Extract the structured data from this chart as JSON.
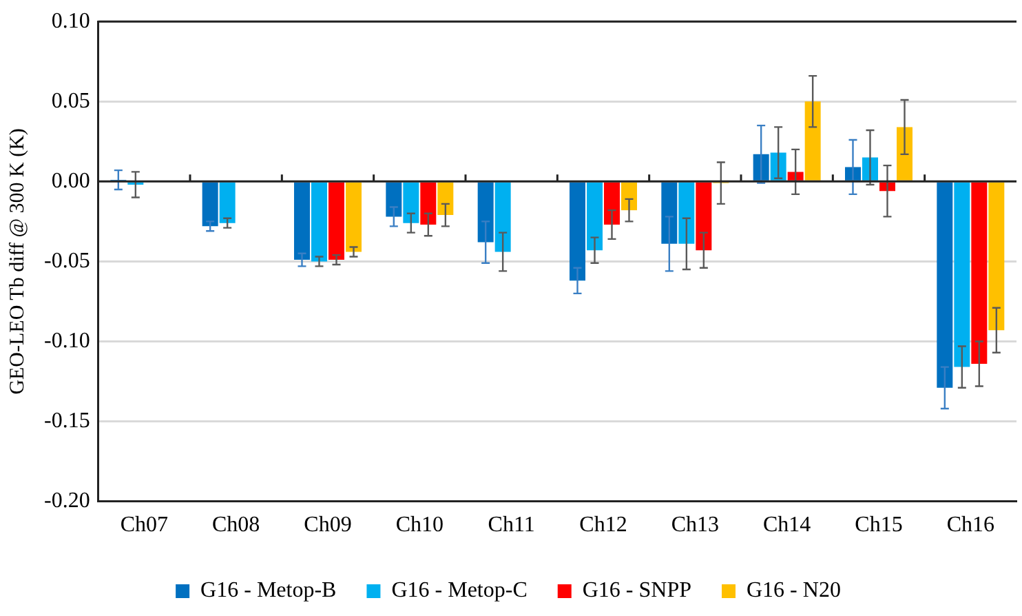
{
  "chart_data": {
    "type": "bar",
    "ylabel": "GEO-LEO Tb diff @ 300 K (K)",
    "categories": [
      "Ch07",
      "Ch08",
      "Ch09",
      "Ch10",
      "Ch11",
      "Ch12",
      "Ch13",
      "Ch14",
      "Ch15",
      "Ch16"
    ],
    "series": [
      {
        "name": "G16 - Metop-B",
        "color": "#0070c0",
        "values": [
          0.001,
          -0.028,
          -0.049,
          -0.022,
          -0.038,
          -0.062,
          -0.039,
          0.017,
          0.009,
          -0.129
        ],
        "errors": [
          0.006,
          0.003,
          0.004,
          0.006,
          0.013,
          0.008,
          0.017,
          0.018,
          0.017,
          0.013
        ]
      },
      {
        "name": "G16 - Metop-C",
        "color": "#00b0f0",
        "values": [
          -0.002,
          -0.026,
          -0.05,
          -0.026,
          -0.044,
          -0.043,
          -0.039,
          0.018,
          0.015,
          -0.116
        ],
        "errors": [
          0.008,
          0.003,
          0.003,
          0.006,
          0.012,
          0.008,
          0.016,
          0.016,
          0.017,
          0.013
        ]
      },
      {
        "name": "G16 - SNPP",
        "color": "#ff0000",
        "values": [
          null,
          null,
          -0.049,
          -0.027,
          null,
          -0.027,
          -0.043,
          0.006,
          -0.006,
          -0.114
        ],
        "errors": [
          null,
          null,
          0.003,
          0.007,
          null,
          0.009,
          0.011,
          0.014,
          0.016,
          0.014
        ]
      },
      {
        "name": "G16 - N20",
        "color": "#ffc000",
        "values": [
          null,
          null,
          -0.044,
          -0.021,
          null,
          -0.018,
          -0.001,
          0.05,
          0.034,
          -0.093
        ],
        "errors": [
          null,
          null,
          0.003,
          0.007,
          null,
          0.007,
          0.013,
          0.016,
          0.017,
          0.014
        ]
      }
    ],
    "ylim": [
      -0.2,
      0.1
    ],
    "yticks": [
      {
        "value": -0.2,
        "label": "-0.20"
      },
      {
        "value": -0.15,
        "label": "-0.15"
      },
      {
        "value": -0.1,
        "label": "-0.10"
      },
      {
        "value": -0.05,
        "label": "-0.05"
      },
      {
        "value": 0,
        "label": "0.00"
      },
      {
        "value": 0.05,
        "label": "0.05"
      },
      {
        "value": 0.1,
        "label": "0.10"
      }
    ],
    "grid": "y",
    "legend": "bottom"
  }
}
